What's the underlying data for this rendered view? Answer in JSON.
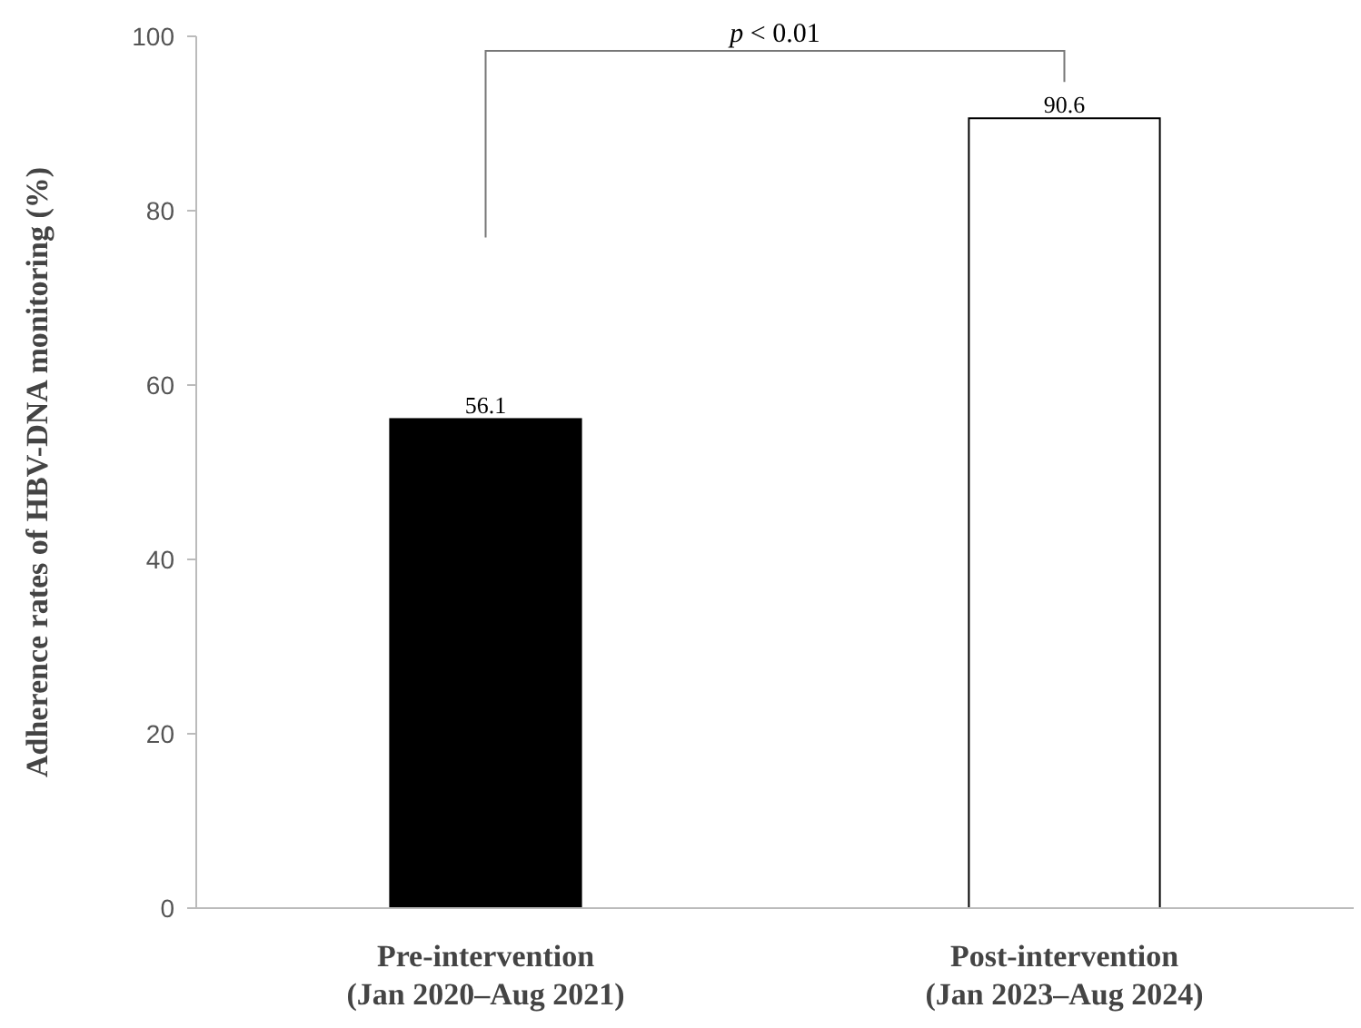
{
  "chart_data": {
    "type": "bar",
    "ylabel": "Adherence rates of HBV-DNA monitoring  (%)",
    "categories": [
      "Pre-intervention\n(Jan 2020–Aug 2021)",
      "Post-intervention\n(Jan 2023–Aug 2024)"
    ],
    "values": [
      56.1,
      90.6
    ],
    "colors": [
      "#000000",
      "#ffffff"
    ],
    "ylim": [
      0,
      100
    ],
    "yticks": [
      0,
      20,
      40,
      60,
      80,
      100
    ],
    "grid": false,
    "data_labels": true,
    "annotations": [
      "p < 0.01"
    ]
  }
}
